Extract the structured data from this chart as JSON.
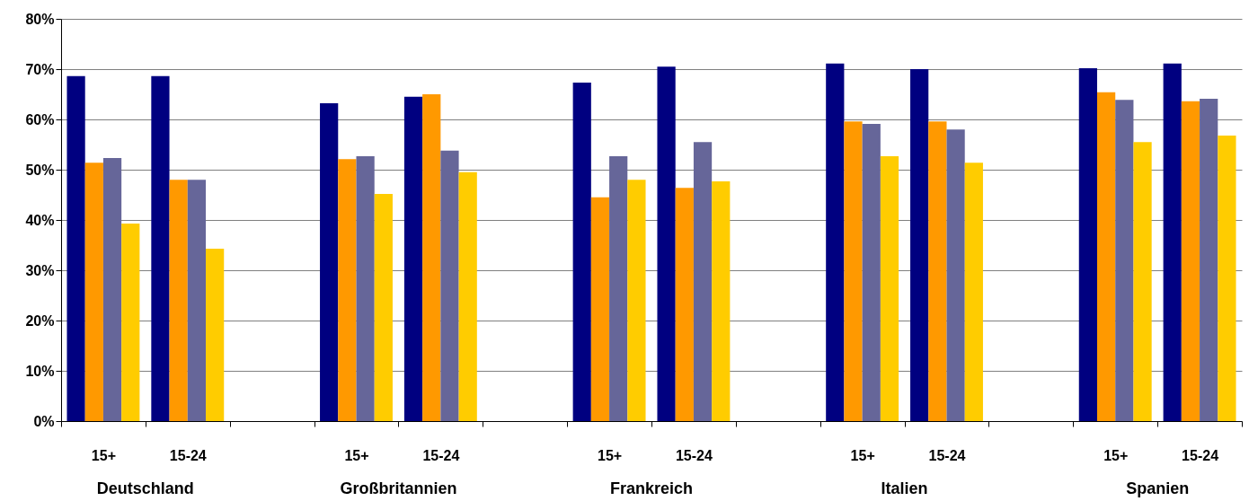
{
  "chart_data": {
    "type": "bar",
    "categories": [
      "15+",
      "15-24",
      null,
      "15+",
      "15-24",
      null,
      "15+",
      "15-24",
      null,
      "15+",
      "15-24",
      null,
      "15+",
      "15-24"
    ],
    "series": [
      {
        "color": "#000080",
        "values": [
          68.6,
          68.6,
          null,
          63.2,
          64.5,
          null,
          67.3,
          70.5,
          null,
          71.1,
          70.0,
          null,
          70.2,
          71.1
        ]
      },
      {
        "color": "#ff9900",
        "values": [
          51.4,
          48.0,
          null,
          52.1,
          65.0,
          null,
          44.5,
          46.4,
          null,
          59.6,
          59.6,
          null,
          65.4,
          63.6
        ]
      },
      {
        "color": "#666699",
        "values": [
          52.3,
          48.0,
          null,
          52.7,
          53.8,
          null,
          52.7,
          55.5,
          null,
          59.1,
          58.0,
          null,
          63.9,
          64.1
        ]
      },
      {
        "color": "#ffcc00",
        "values": [
          39.3,
          34.3,
          null,
          45.2,
          49.5,
          null,
          48.0,
          47.7,
          null,
          52.7,
          51.4,
          null,
          55.5,
          56.8
        ]
      }
    ],
    "annotations": [
      "Deutschland",
      "Großbritannien",
      "Frankreich",
      "Italien",
      "Spanien"
    ],
    "ylim": [
      0,
      80
    ],
    "yticks": [
      {
        "value": 0,
        "label": "0%"
      },
      {
        "value": 10,
        "label": "10%"
      },
      {
        "value": 20,
        "label": "20%"
      },
      {
        "value": 30,
        "label": "30%"
      },
      {
        "value": 40,
        "label": "40%"
      },
      {
        "value": 50,
        "label": "50%"
      },
      {
        "value": 60,
        "label": "60%"
      },
      {
        "value": 70,
        "label": "70%"
      },
      {
        "value": 80,
        "label": "80%"
      }
    ],
    "grid": "y"
  }
}
